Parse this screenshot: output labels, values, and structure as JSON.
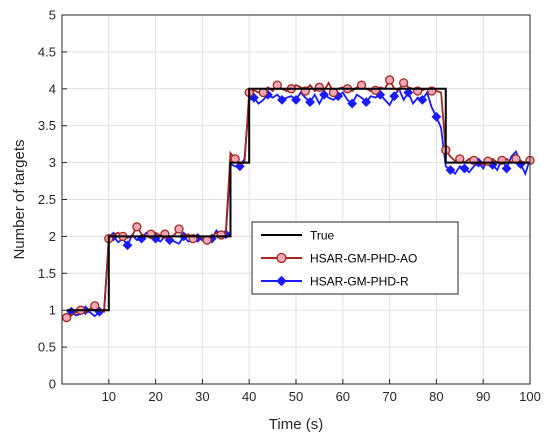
{
  "chart_data": {
    "type": "line",
    "title": "",
    "xlabel": "Time (s)",
    "ylabel": "Number of targets",
    "xlim": [
      0,
      100
    ],
    "ylim": [
      0,
      5
    ],
    "xticks": [
      10,
      20,
      30,
      40,
      50,
      60,
      70,
      80,
      90,
      100
    ],
    "yticks": [
      0,
      0.5,
      1,
      1.5,
      2,
      2.5,
      3,
      3.5,
      4,
      4.5,
      5
    ],
    "xtick_labels": [
      "10",
      "20",
      "30",
      "40",
      "50",
      "60",
      "70",
      "80",
      "90",
      "100"
    ],
    "ytick_labels": [
      "0",
      "0.5",
      "1",
      "1.5",
      "2",
      "2.5",
      "3",
      "3.5",
      "4",
      "4.5",
      "5"
    ],
    "grid": true,
    "legend_position": "center-right",
    "x": [
      1,
      2,
      3,
      4,
      5,
      6,
      7,
      8,
      9,
      10,
      11,
      12,
      13,
      14,
      15,
      16,
      17,
      18,
      19,
      20,
      21,
      22,
      23,
      24,
      25,
      26,
      27,
      28,
      29,
      30,
      31,
      32,
      33,
      34,
      35,
      36,
      37,
      38,
      39,
      40,
      41,
      42,
      43,
      44,
      45,
      46,
      47,
      48,
      49,
      50,
      51,
      52,
      53,
      54,
      55,
      56,
      57,
      58,
      59,
      60,
      61,
      62,
      63,
      64,
      65,
      66,
      67,
      68,
      69,
      70,
      71,
      72,
      73,
      74,
      75,
      76,
      77,
      78,
      79,
      80,
      81,
      82,
      83,
      84,
      85,
      86,
      87,
      88,
      89,
      90,
      91,
      92,
      93,
      94,
      95,
      96,
      97,
      98,
      99,
      100
    ],
    "series": [
      {
        "name": "True",
        "color": "#000000",
        "marker": "none",
        "values": [
          1,
          1,
          1,
          1,
          1,
          1,
          1,
          1,
          1,
          2,
          2,
          2,
          2,
          2,
          2,
          2,
          2,
          2,
          2,
          2,
          2,
          2,
          2,
          2,
          2,
          2,
          2,
          2,
          2,
          2,
          2,
          2,
          2,
          2,
          2,
          3,
          3,
          3,
          3,
          4,
          4,
          4,
          4,
          4,
          4,
          4,
          4,
          4,
          4,
          4,
          4,
          4,
          4,
          4,
          4,
          4,
          4,
          4,
          4,
          4,
          4,
          4,
          4,
          4,
          4,
          4,
          4,
          4,
          4,
          4,
          4,
          4,
          4,
          4,
          4,
          4,
          4,
          4,
          4,
          4,
          4,
          3,
          3,
          3,
          3,
          3,
          3,
          3,
          3,
          3,
          3,
          3,
          3,
          3,
          3,
          3,
          3,
          3,
          3,
          3
        ]
      },
      {
        "name": "HSAR-GM-PHD-AO",
        "color": "#a0281e",
        "marker": "circle",
        "marker_face": "#f4a7b9",
        "values": [
          0.9,
          0.93,
          0.97,
          1.0,
          0.97,
          1.02,
          1.06,
          1.0,
          0.98,
          1.97,
          2.02,
          2.05,
          2.0,
          1.98,
          2.01,
          2.13,
          2.03,
          2.0,
          2.03,
          2.05,
          2.01,
          2.03,
          1.98,
          2.02,
          2.1,
          2.0,
          2.03,
          1.97,
          2.01,
          1.98,
          1.95,
          2.0,
          2.05,
          2.02,
          2.05,
          3.13,
          3.05,
          2.98,
          3.0,
          3.95,
          3.98,
          3.95,
          3.95,
          4.02,
          3.97,
          4.05,
          4.0,
          3.97,
          4.0,
          4.05,
          4.02,
          3.97,
          4.05,
          3.97,
          4.02,
          3.98,
          4.08,
          3.95,
          4.0,
          4.02,
          4.0,
          3.97,
          4.02,
          4.05,
          4.0,
          3.97,
          3.98,
          4.02,
          4.0,
          4.12,
          4.0,
          3.98,
          4.08,
          4.02,
          4.0,
          3.97,
          3.98,
          4.0,
          3.97,
          3.97,
          3.95,
          3.17,
          3.08,
          3.02,
          3.05,
          3.0,
          3.05,
          3.03,
          3.0,
          2.97,
          3.02,
          3.05,
          3.0,
          3.03,
          3.05,
          3.0,
          3.05,
          3.02,
          3.0,
          3.03
        ]
      },
      {
        "name": "HSAR-GM-PHD-R",
        "color": "#1a1aff",
        "marker": "diamond",
        "values": [
          1.0,
          0.98,
          0.93,
          0.95,
          1.0,
          0.97,
          0.92,
          0.98,
          1.0,
          1.95,
          2.0,
          1.92,
          1.97,
          1.88,
          2.02,
          1.95,
          1.97,
          2.05,
          2.0,
          1.97,
          1.93,
          2.0,
          1.95,
          1.93,
          1.9,
          2.0,
          1.93,
          1.95,
          1.98,
          1.95,
          1.9,
          1.97,
          2.08,
          2.0,
          2.03,
          2.98,
          2.95,
          2.95,
          3.05,
          3.85,
          3.88,
          3.8,
          3.85,
          3.92,
          3.88,
          3.92,
          3.85,
          3.88,
          3.9,
          3.85,
          3.95,
          3.88,
          3.82,
          3.92,
          3.8,
          3.92,
          3.88,
          3.85,
          3.9,
          3.95,
          3.85,
          3.8,
          3.92,
          3.88,
          3.82,
          3.9,
          3.88,
          3.92,
          3.85,
          3.78,
          3.9,
          4.0,
          3.85,
          3.95,
          3.8,
          3.88,
          3.85,
          3.95,
          3.75,
          3.62,
          3.47,
          2.95,
          2.9,
          2.85,
          2.95,
          2.92,
          2.87,
          2.95,
          3.0,
          2.92,
          3.05,
          2.97,
          2.9,
          3.05,
          2.92,
          3.08,
          3.15,
          2.98,
          2.85,
          3.05
        ]
      }
    ]
  }
}
